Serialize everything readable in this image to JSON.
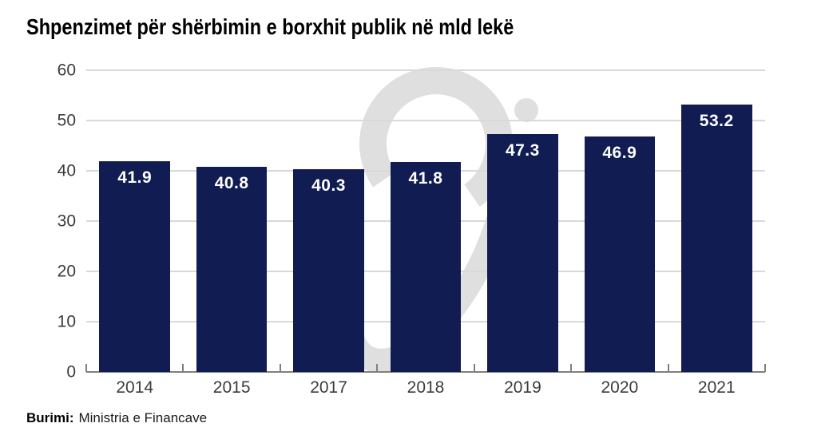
{
  "page": {
    "background": "#ffffff"
  },
  "footer": {
    "source_label": "Burimi:",
    "source_text": "Ministria e Financave"
  },
  "watermark": {
    "name": "script-s-logo",
    "color": "#dfdfdf"
  },
  "chart_data": {
    "type": "bar",
    "title": "Shpenzimet për shërbimin e borxhit publik në mld lekë",
    "categories": [
      "2014",
      "2015",
      "2017",
      "2018",
      "2019",
      "2020",
      "2021"
    ],
    "values": [
      41.9,
      40.8,
      40.3,
      41.8,
      47.3,
      46.9,
      53.2
    ],
    "value_labels": [
      "41.9",
      "40.8",
      "40.3",
      "41.8",
      "47.3",
      "46.9",
      "53.2"
    ],
    "value_label_position": "inside-top",
    "value_label_color": "#ffffff",
    "xlabel": "",
    "ylabel": "",
    "ylim": [
      0,
      60
    ],
    "yticks": [
      0,
      10,
      20,
      30,
      40,
      50,
      60
    ],
    "grid": "horizontal",
    "legend": "none",
    "bar_color": "#101c52",
    "gridline_color": "#d9d9d9",
    "axis_line_color": "#7f7f7f",
    "axis_label_color": "#3c3c3c"
  }
}
